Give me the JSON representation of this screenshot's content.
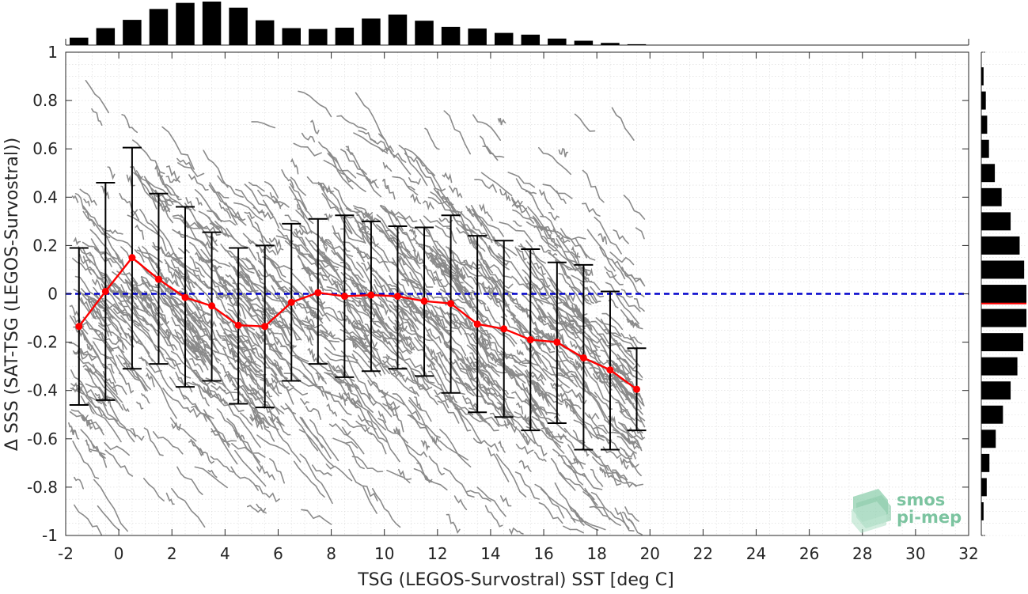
{
  "chart_data": {
    "type": "scatter",
    "xlabel": "TSG (LEGOS-Survostral) SST [deg C]",
    "ylabel": "Δ SSS (SAT-TSG (LEGOS-Survostral))",
    "xlim": [
      -2,
      32
    ],
    "ylim": [
      -1,
      1
    ],
    "x_ticks": [
      -2,
      0,
      2,
      4,
      6,
      8,
      10,
      12,
      14,
      16,
      18,
      20,
      22,
      24,
      26,
      28,
      30,
      32
    ],
    "y_ticks": [
      -1,
      -0.8,
      -0.6,
      -0.4,
      -0.2,
      0,
      0.2,
      0.4,
      0.6,
      0.8,
      1
    ],
    "x_tick_labels": [
      "-2",
      "0",
      "2",
      "4",
      "6",
      "8",
      "10",
      "12",
      "14",
      "16",
      "18",
      "20",
      "22",
      "24",
      "26",
      "28",
      "30",
      "32"
    ],
    "y_tick_labels": [
      "-1",
      "-0.8",
      "-0.6",
      "-0.4",
      "-0.2",
      "0",
      "0.2",
      "0.4",
      "0.6",
      "0.8",
      "1"
    ],
    "grid": true,
    "scatter_color": "#808080",
    "mean_color": "#ff0000",
    "zero_line_color": "#0000cc",
    "zero_line": 0,
    "binned_stats": {
      "x": [
        -1.5,
        -0.5,
        0.5,
        1.5,
        2.5,
        3.5,
        4.5,
        5.5,
        6.5,
        7.5,
        8.5,
        9.5,
        10.5,
        11.5,
        12.5,
        13.5,
        14.5,
        15.5,
        16.5,
        17.5,
        18.5,
        19.5
      ],
      "mean": [
        -0.135,
        0.01,
        0.15,
        0.06,
        -0.015,
        -0.05,
        -0.13,
        -0.135,
        -0.035,
        0.005,
        -0.01,
        -0.005,
        -0.01,
        -0.03,
        -0.04,
        -0.125,
        -0.145,
        -0.19,
        -0.2,
        -0.265,
        -0.315,
        -0.395
      ],
      "upper": [
        0.19,
        0.46,
        0.605,
        0.415,
        0.36,
        0.255,
        0.19,
        0.2,
        0.29,
        0.31,
        0.325,
        0.3,
        0.28,
        0.275,
        0.325,
        0.24,
        0.22,
        0.185,
        0.13,
        0.12,
        0.01,
        -0.225
      ],
      "lower": [
        -0.46,
        -0.44,
        -0.31,
        -0.29,
        -0.385,
        -0.36,
        -0.455,
        -0.47,
        -0.36,
        -0.29,
        -0.345,
        -0.32,
        -0.31,
        -0.34,
        -0.41,
        -0.49,
        -0.51,
        -0.565,
        -0.535,
        -0.645,
        -0.645,
        -0.565
      ]
    },
    "top_histogram": {
      "bin_centers": [
        -1.5,
        -0.5,
        0.5,
        1.5,
        2.5,
        3.5,
        4.5,
        5.5,
        6.5,
        7.5,
        8.5,
        9.5,
        10.5,
        11.5,
        12.5,
        13.5,
        14.5,
        15.5,
        16.5,
        17.5,
        18.5,
        19.5
      ],
      "counts": [
        0.17,
        0.39,
        0.58,
        0.83,
        0.97,
        1.0,
        0.86,
        0.57,
        0.39,
        0.37,
        0.4,
        0.61,
        0.7,
        0.56,
        0.42,
        0.38,
        0.28,
        0.24,
        0.15,
        0.1,
        0.05,
        0.02
      ]
    },
    "right_histogram": {
      "bin_centers": [
        -0.9,
        -0.8,
        -0.7,
        -0.6,
        -0.5,
        -0.4,
        -0.3,
        -0.2,
        -0.1,
        0.0,
        0.1,
        0.2,
        0.3,
        0.4,
        0.5,
        0.6,
        0.7,
        0.8,
        0.9
      ],
      "counts": [
        0.05,
        0.12,
        0.18,
        0.32,
        0.48,
        0.65,
        0.8,
        0.93,
        1.0,
        1.0,
        0.95,
        0.85,
        0.65,
        0.45,
        0.3,
        0.17,
        0.13,
        0.1,
        0.05
      ],
      "mean_marker": -0.04
    }
  },
  "logo": {
    "line1": "smos",
    "line2": "pi-mep",
    "color": "#7cc4a0"
  }
}
